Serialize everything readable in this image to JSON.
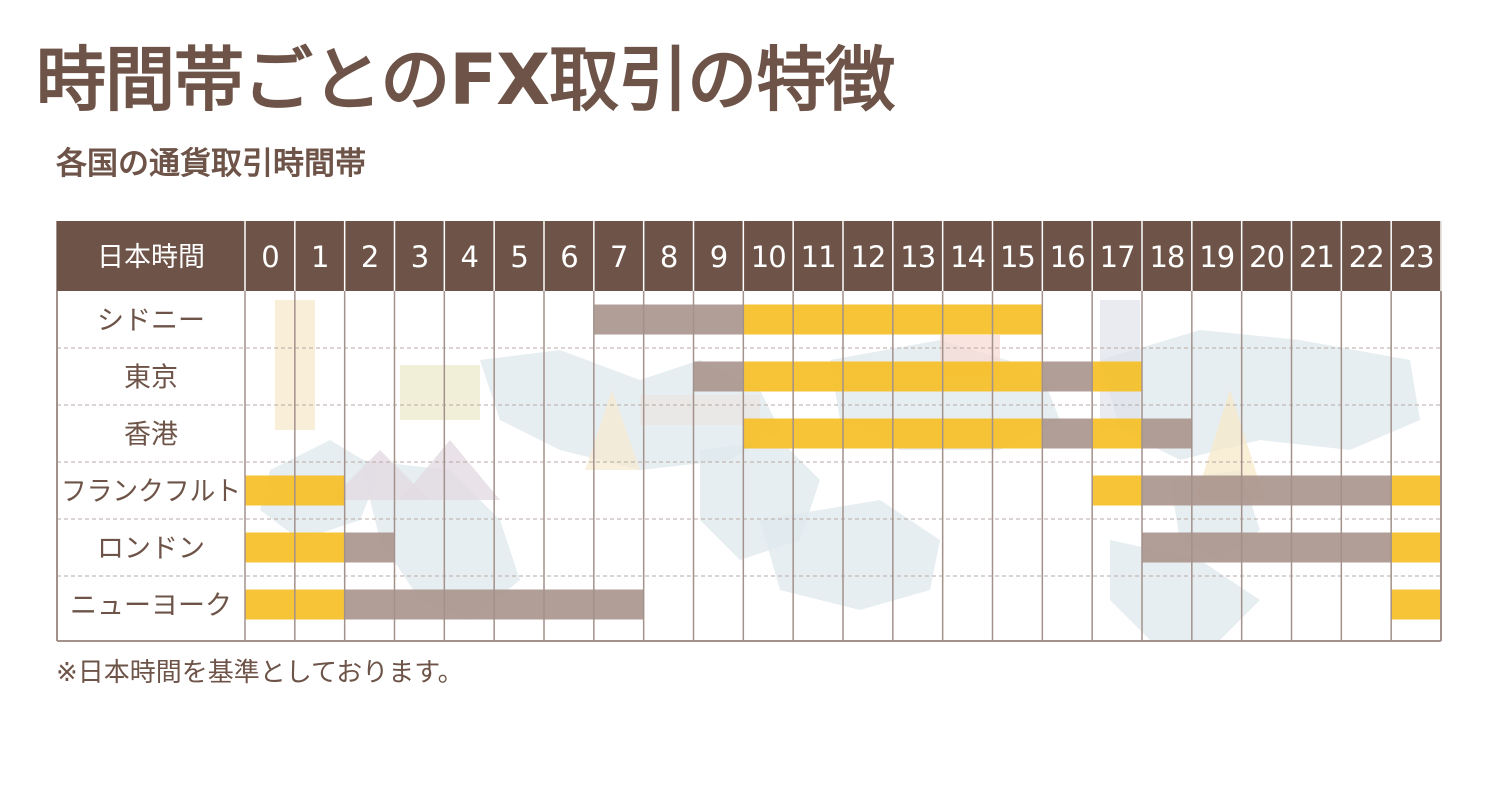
{
  "page": {
    "title": "時間帯ごとのFX取引の特徴",
    "subtitle": "各国の通貨取引時間帯",
    "note": "※日本時間を基準としております。"
  },
  "colors": {
    "header_bg": "#6e5448",
    "header_text": "#ffffff",
    "grid_line": "#a3918b",
    "row_separator": "#b8aaa4",
    "main_session": "#f5c027",
    "other_session": "#a8948c",
    "label_text": "#6e5448",
    "map_decoration": "#dfe8ec"
  },
  "chart_data": {
    "type": "gantt",
    "header_label": "日本時間",
    "hours": [
      "0",
      "1",
      "2",
      "3",
      "4",
      "5",
      "6",
      "7",
      "8",
      "9",
      "10",
      "11",
      "12",
      "13",
      "14",
      "15",
      "16",
      "17",
      "18",
      "19",
      "20",
      "21",
      "22",
      "23"
    ],
    "rows": [
      {
        "name": "シドニー",
        "segments": [
          {
            "start": 7,
            "end": 10,
            "kind": "other"
          },
          {
            "start": 10,
            "end": 16,
            "kind": "main"
          }
        ]
      },
      {
        "name": "東京",
        "segments": [
          {
            "start": 9,
            "end": 10,
            "kind": "other"
          },
          {
            "start": 10,
            "end": 16,
            "kind": "main"
          },
          {
            "start": 16,
            "end": 17,
            "kind": "other"
          },
          {
            "start": 17,
            "end": 18,
            "kind": "main"
          }
        ]
      },
      {
        "name": "香港",
        "segments": [
          {
            "start": 10,
            "end": 16,
            "kind": "main"
          },
          {
            "start": 16,
            "end": 17,
            "kind": "other"
          },
          {
            "start": 17,
            "end": 18,
            "kind": "main"
          },
          {
            "start": 18,
            "end": 19,
            "kind": "other"
          }
        ]
      },
      {
        "name": "フランクフルト",
        "segments": [
          {
            "start": 0,
            "end": 2,
            "kind": "main"
          },
          {
            "start": 17,
            "end": 18,
            "kind": "main"
          },
          {
            "start": 18,
            "end": 23,
            "kind": "other"
          },
          {
            "start": 23,
            "end": 24,
            "kind": "main"
          }
        ]
      },
      {
        "name": "ロンドン",
        "segments": [
          {
            "start": 0,
            "end": 2,
            "kind": "main"
          },
          {
            "start": 2,
            "end": 3,
            "kind": "other"
          },
          {
            "start": 18,
            "end": 23,
            "kind": "other"
          },
          {
            "start": 23,
            "end": 24,
            "kind": "main"
          }
        ]
      },
      {
        "name": "ニューヨーク",
        "segments": [
          {
            "start": 0,
            "end": 2,
            "kind": "main"
          },
          {
            "start": 2,
            "end": 8,
            "kind": "other"
          },
          {
            "start": 23,
            "end": 24,
            "kind": "main"
          }
        ]
      }
    ]
  }
}
